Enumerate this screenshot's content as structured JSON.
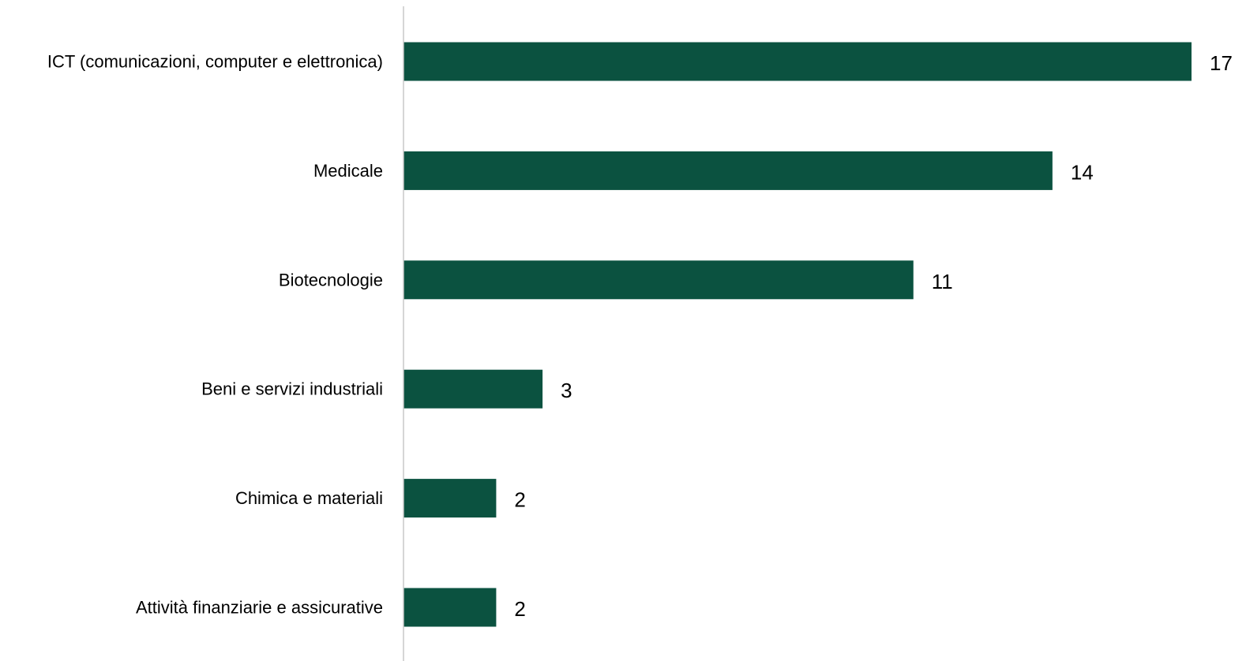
{
  "chart_data": {
    "type": "bar",
    "orientation": "horizontal",
    "title": "",
    "xlabel": "",
    "ylabel": "",
    "categories": [
      "ICT (comunicazioni, computer e elettronica)",
      "Medicale",
      "Biotecnologie",
      "Beni e servizi industriali",
      "Chimica e materiali",
      "Attività finanziarie e assicurative"
    ],
    "values": [
      17,
      14,
      11,
      3,
      2,
      2
    ],
    "data_labels": [
      "17",
      "14",
      "11",
      "3",
      "2",
      "2"
    ],
    "xlim": [
      0,
      17
    ],
    "grid": false,
    "legend": "none",
    "colors": {
      "bar": "#0b5240",
      "axis": "#c8c8c8",
      "text": "#000000"
    }
  }
}
